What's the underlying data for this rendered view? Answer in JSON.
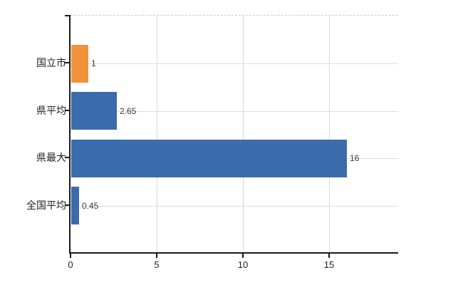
{
  "chart_data": {
    "type": "bar",
    "orientation": "horizontal",
    "title": "",
    "xlabel": "",
    "ylabel": "",
    "categories": [
      "国立市",
      "県平均",
      "県最大",
      "全国平均"
    ],
    "values": [
      1,
      2.65,
      16,
      0.45
    ],
    "value_labels": [
      "1",
      "2.65",
      "16",
      "0.45"
    ],
    "colors": [
      "#ef9239",
      "#3a6bac",
      "#3a6bac",
      "#3a6bac"
    ],
    "highlight_category": "国立市",
    "bar_color_default": "#3a6bac",
    "bar_color_highlight": "#ef9239",
    "xlim": [
      0,
      19
    ],
    "x_ticks": [
      0,
      5,
      10,
      15
    ],
    "x_tick_labels": [
      "0",
      "5",
      "10",
      "15"
    ],
    "grid": true,
    "legend": false
  }
}
